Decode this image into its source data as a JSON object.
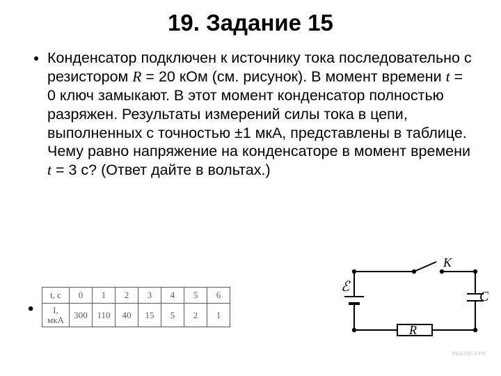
{
  "title": "19. Задание 15",
  "paragraph": {
    "parts": [
      {
        "t": "Конденсатор подключен к источнику тока последовательно с резистором "
      },
      {
        "t": "R",
        "italic": true
      },
      {
        "t": " = 20 кОм (см. рисунок). В момент времени "
      },
      {
        "t": "t",
        "italic": true
      },
      {
        "t": " = 0 ключ замыкают. В этот момент конденсатор полностью разряжен. Результаты измерений силы тока в цепи, выполненных с точностью ±1 мкА, представлены в таблице. Чему равно напряжение на конденсаторе в момент времени "
      },
      {
        "t": "t",
        "italic": true
      },
      {
        "t": " = 3 с? (Ответ дайте в вольтах.)"
      }
    ]
  },
  "table": {
    "row1_header": "t, с",
    "row2_header": "I,\nмкА",
    "times": [
      "0",
      "1",
      "2",
      "3",
      "4",
      "5",
      "6"
    ],
    "current": [
      "300",
      "110",
      "40",
      "15",
      "5",
      "2",
      "1"
    ],
    "border_color": "#5a5a5a",
    "text_color": "#5a5a5a",
    "font_size_pt": 10
  },
  "circuit": {
    "labels": {
      "emf": "ℰ",
      "switch": "K",
      "capacitor": "C",
      "resistor": "R"
    },
    "stroke": "#000000",
    "stroke_width": 2
  },
  "watermark": "РЕШУЕГЭ.РФ",
  "colors": {
    "background": "#ffffff",
    "text": "#000000"
  }
}
